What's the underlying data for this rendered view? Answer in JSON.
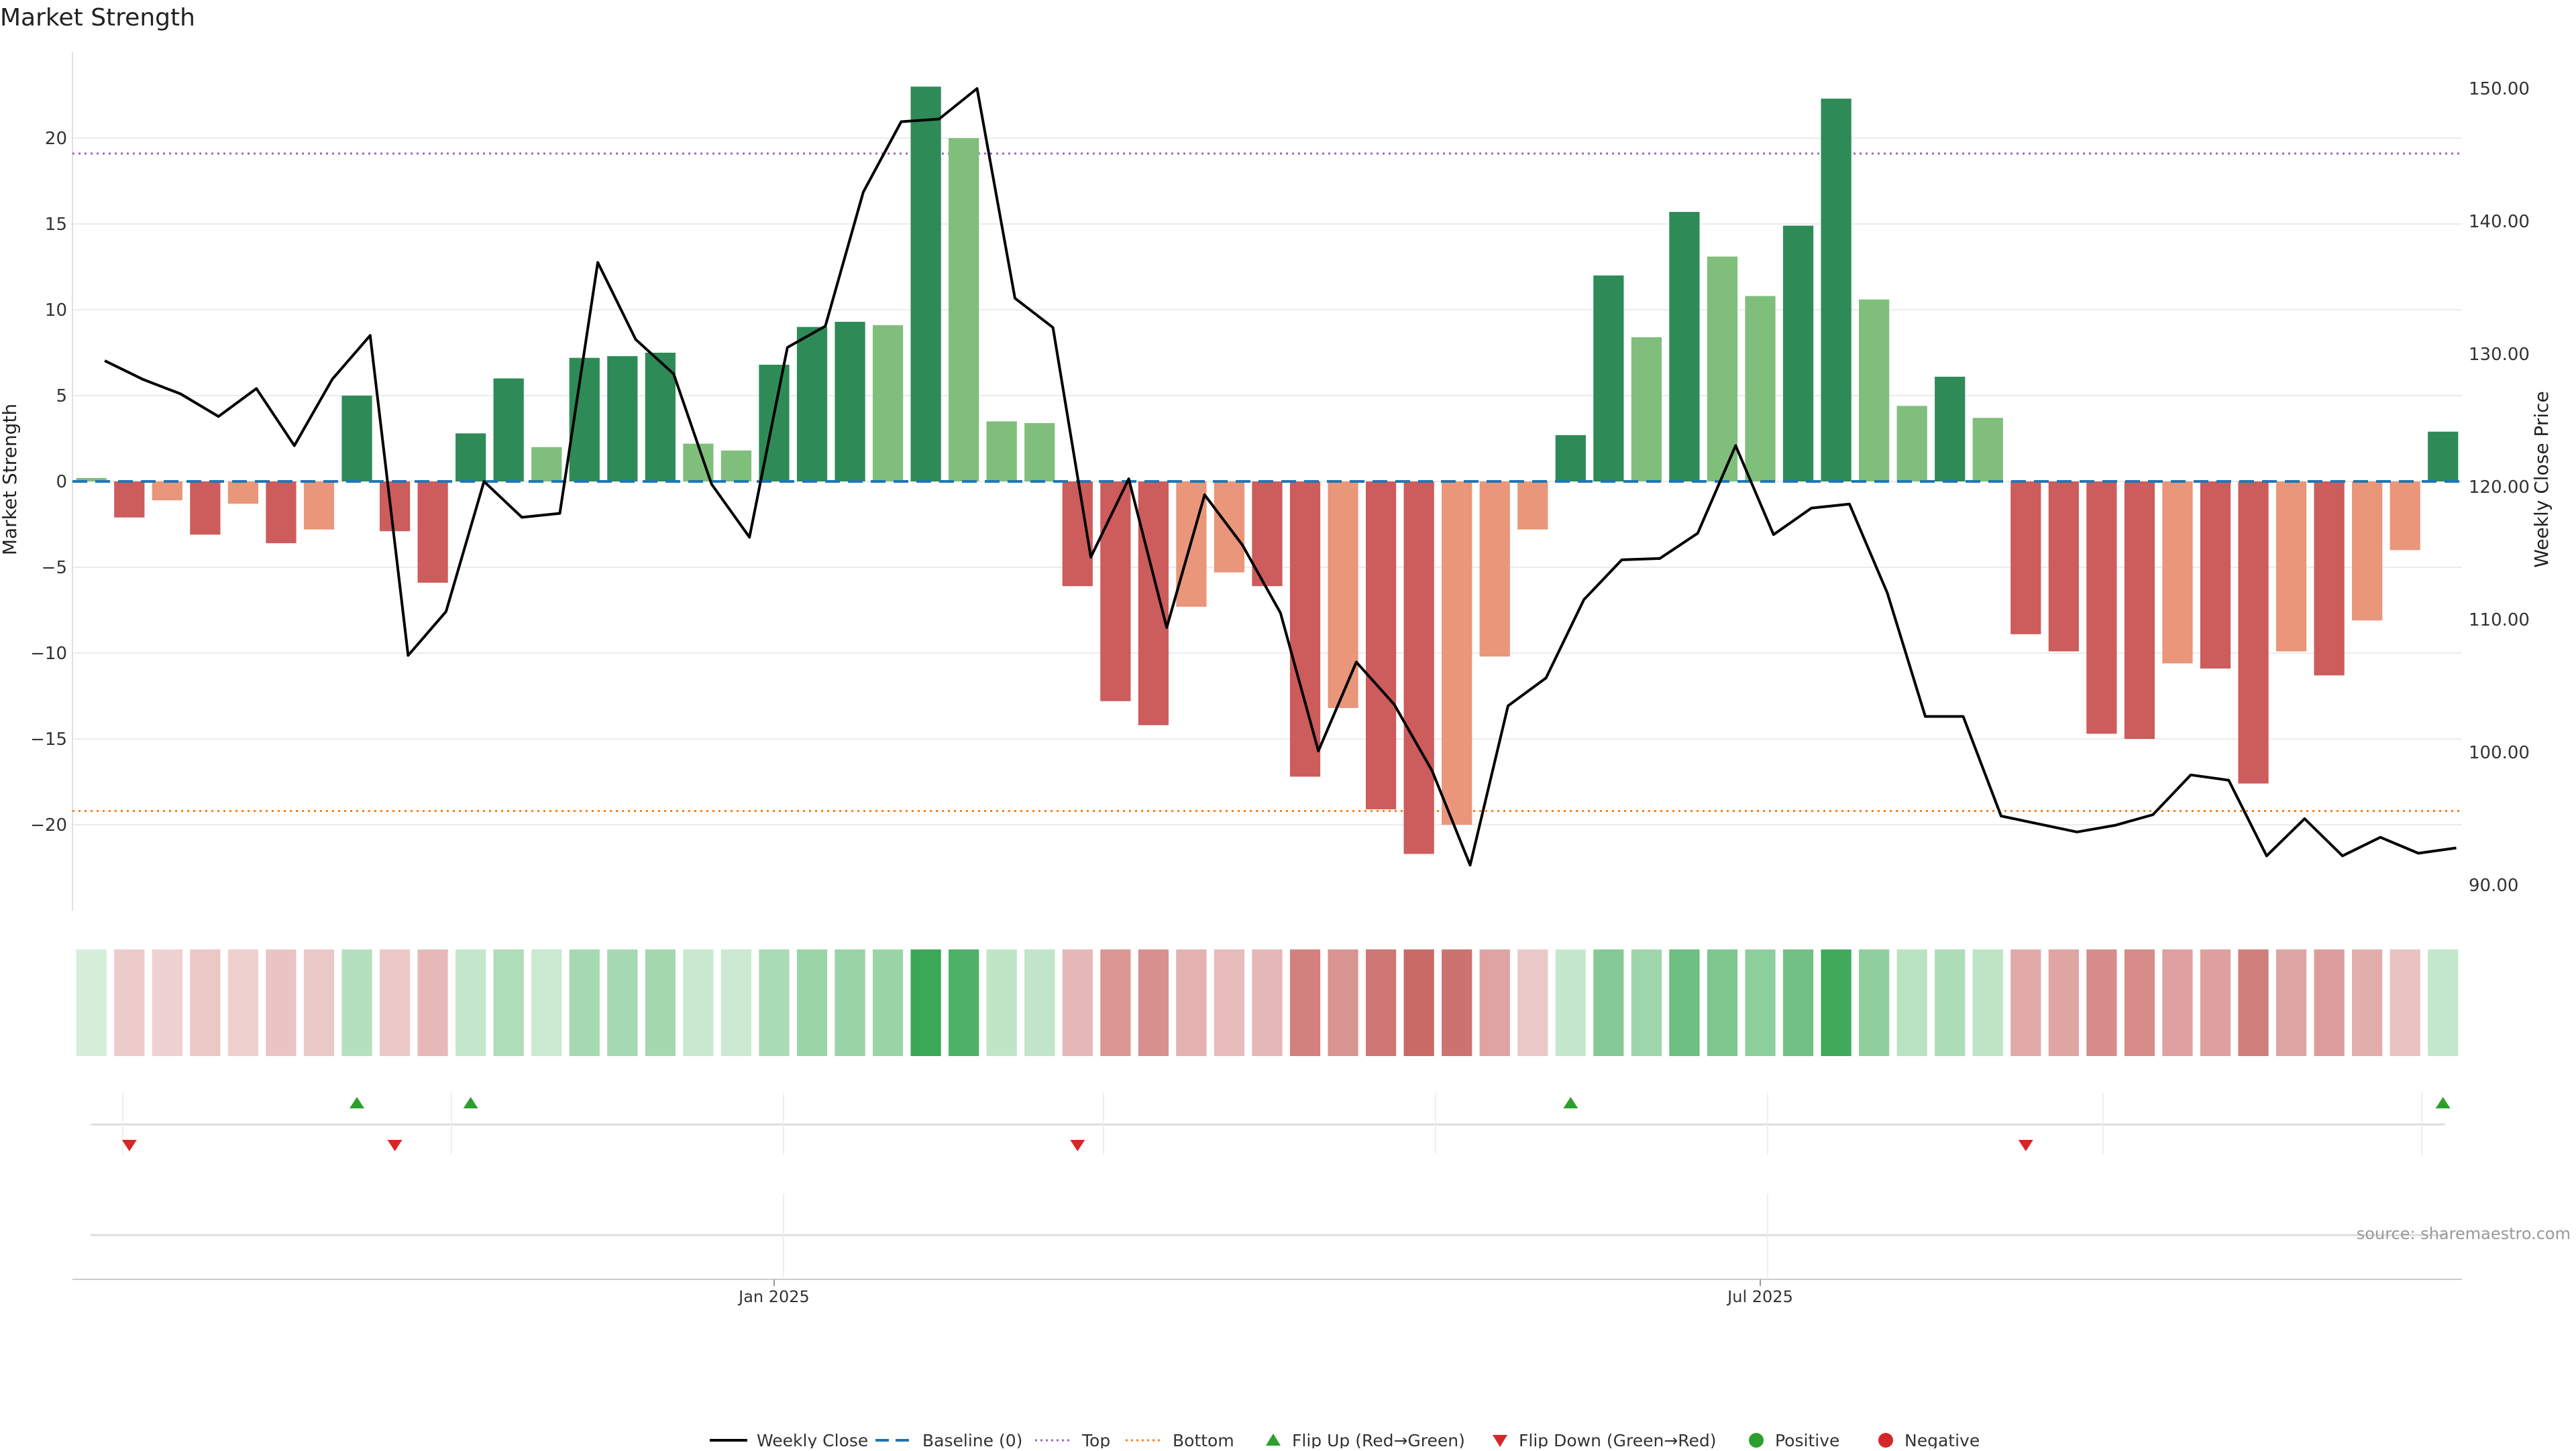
{
  "chart_data": {
    "type": "bar",
    "title": "Market Strength",
    "ylabel": "Market Strength",
    "ylabel_right": "Weekly Close Price",
    "ylim": [
      -25,
      25
    ],
    "ylim_right": [
      90,
      150
    ],
    "y_ticks": [
      -20,
      -15,
      -10,
      -5,
      0,
      5,
      10,
      15,
      20
    ],
    "y_tick_labels": [
      "−20",
      "−15",
      "−10",
      "−5",
      "0",
      "5",
      "10",
      "15",
      "20"
    ],
    "y_right_ticks": [
      90,
      100,
      110,
      120,
      130,
      140,
      150
    ],
    "y_right_tick_labels": [
      "90.00",
      "100.00",
      "110.00",
      "120.00",
      "130.00",
      "140.00",
      "150.00"
    ],
    "x_tick_labels": [
      {
        "label": "Jan 2025",
        "index": 18.5
      },
      {
        "label": "Jul 2025",
        "index": 44.5
      }
    ],
    "top_line": 19.1,
    "bottom_line": -19.2,
    "source": "source: sharemaestro.com",
    "colors": {
      "strong_green": "#2e8b57",
      "light_green": "#7fbf7b",
      "strong_red": "#cd5c5c",
      "light_red": "#e9967a",
      "price_line": "#000000",
      "baseline": "#1f77b4",
      "top": "#9467bd",
      "bottom": "#ff7f0e",
      "flip_up": "#2ca02c",
      "flip_down": "#d62728",
      "positive": "#2ca02c",
      "negative": "#d62728"
    },
    "legend": [
      {
        "label": "Weekly Close",
        "kind": "line",
        "color": "#000000"
      },
      {
        "label": "Baseline (0)",
        "kind": "dashed",
        "color": "#1f77b4"
      },
      {
        "label": "Top",
        "kind": "dotted",
        "color": "#9467bd"
      },
      {
        "label": "Bottom",
        "kind": "dotted",
        "color": "#ff7f0e"
      },
      {
        "label": "Flip Up (Red→Green)",
        "kind": "triangle-up",
        "color": "#2ca02c"
      },
      {
        "label": "Flip Down (Green→Red)",
        "kind": "triangle-down",
        "color": "#d62728"
      },
      {
        "label": "Positive",
        "kind": "dot",
        "color": "#2ca02c"
      },
      {
        "label": "Negative",
        "kind": "dot",
        "color": "#d62728"
      }
    ],
    "strength": [
      0.2,
      -2.1,
      -1.1,
      -3.1,
      -1.3,
      -3.6,
      -2.8,
      5.0,
      -2.9,
      -5.9,
      2.8,
      6.0,
      2.0,
      7.2,
      7.3,
      7.5,
      2.2,
      1.8,
      6.8,
      9.0,
      9.3,
      9.1,
      23.0,
      20.0,
      3.5,
      3.4,
      -6.1,
      -12.8,
      -14.2,
      -7.3,
      -5.3,
      -6.1,
      -17.2,
      -13.2,
      -19.1,
      -21.7,
      -20.0,
      -10.2,
      -2.8,
      2.7,
      12.0,
      8.4,
      15.7,
      13.1,
      10.8,
      14.9,
      22.3,
      10.6,
      4.4,
      6.1,
      3.7,
      -8.9,
      -9.9,
      -14.7,
      -15.0,
      -10.6,
      -10.9,
      -17.6,
      -9.9,
      -11.3,
      -8.1,
      -4.0,
      2.9
    ],
    "strength_intensity": [
      "light",
      "strong",
      "light",
      "strong",
      "light",
      "strong",
      "light",
      "strong",
      "strong",
      "strong",
      "strong",
      "strong",
      "light",
      "strong",
      "strong",
      "strong",
      "light",
      "light",
      "strong",
      "strong",
      "strong",
      "light",
      "strong",
      "light",
      "light",
      "light",
      "strong",
      "strong",
      "strong",
      "light",
      "light",
      "strong",
      "strong",
      "light",
      "strong",
      "strong",
      "light",
      "light",
      "light",
      "strong",
      "strong",
      "light",
      "strong",
      "light",
      "light",
      "strong",
      "strong",
      "light",
      "light",
      "strong",
      "light",
      "strong",
      "strong",
      "strong",
      "strong",
      "light",
      "strong",
      "strong",
      "light",
      "strong",
      "light",
      "light",
      "strong"
    ],
    "weekly_close": [
      null,
      129.5,
      128.1,
      127.0,
      125.3,
      127.4,
      123.1,
      128.1,
      131.4,
      107.3,
      110.6,
      120.4,
      117.7,
      118.0,
      136.9,
      131.1,
      128.5,
      120.2,
      116.2,
      130.5,
      132.1,
      142.2,
      147.5,
      147.7,
      150.0,
      134.2,
      132.0,
      114.7,
      120.6,
      109.4,
      119.4,
      115.6,
      110.5,
      100.1,
      106.8,
      103.6,
      98.6,
      91.5,
      103.5,
      105.6,
      111.5,
      114.5,
      114.6,
      116.5,
      123.1,
      116.4,
      118.4,
      118.7,
      112.0,
      102.7,
      102.7,
      95.2,
      94.6,
      94.0,
      94.5,
      95.3,
      98.3,
      97.9,
      92.2,
      95.0,
      92.2,
      93.6,
      92.4,
      92.8
    ],
    "heat_strip": [
      0.2,
      -2.1,
      -1.1,
      -3.1,
      -1.3,
      -3.6,
      -2.8,
      5.0,
      -2.9,
      -5.9,
      2.8,
      6.0,
      2.0,
      7.2,
      7.3,
      7.5,
      2.2,
      1.8,
      6.8,
      9.0,
      9.3,
      9.1,
      23.0,
      20.0,
      3.5,
      3.4,
      -6.1,
      -12.8,
      -14.2,
      -7.3,
      -5.3,
      -6.1,
      -17.2,
      -13.2,
      -19.1,
      -21.7,
      -20.0,
      -10.2,
      -2.8,
      2.7,
      12.0,
      8.4,
      15.7,
      13.1,
      10.8,
      14.9,
      22.3,
      10.6,
      4.4,
      6.1,
      3.7,
      -8.9,
      -9.9,
      -14.7,
      -15.0,
      -10.6,
      -10.9,
      -17.6,
      -9.9,
      -11.3,
      -8.1,
      -4.0,
      2.9
    ],
    "flip_up_indices": [
      7,
      10,
      39,
      62
    ],
    "flip_down_indices": [
      1,
      8,
      26,
      51
    ]
  }
}
